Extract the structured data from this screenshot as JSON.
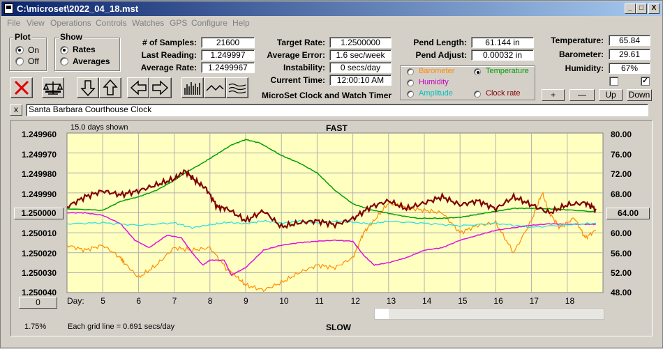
{
  "window": {
    "title": "C:\\microset\\2022_04_18.mst",
    "min": "_",
    "max": "□",
    "close": "X"
  },
  "menu": [
    "File",
    "View",
    "Operations",
    "Controls",
    "Watches",
    "GPS",
    "Configure",
    "Help"
  ],
  "plot_group": {
    "title": "Plot",
    "options": [
      "On",
      "Off"
    ],
    "selected": "On"
  },
  "show_group": {
    "title": "Show",
    "options": [
      "Rates",
      "Averages"
    ],
    "selected": "Rates"
  },
  "stats": {
    "samples_label": "# of Samples:",
    "samples": "21600",
    "last_label": "Last Reading:",
    "last": "1.249997",
    "avg_rate_label": "Average Rate:",
    "avg_rate": "1.2499967",
    "target_label": "Target Rate:",
    "target": "1.2500000",
    "avg_err_label": "Average Error:",
    "avg_err": "1.6 sec/week",
    "instab_label": "Instability:",
    "instab": "0 secs/day",
    "time_label": "Current Time:",
    "time": "12:00:10 AM",
    "pend_len_label": "Pend Length:",
    "pend_len": "61.144 in",
    "pend_adj_label": "Pend Adjust:",
    "pend_adj": "0.00032 in",
    "temp_label": "Temperature:",
    "temp": "65.84",
    "baro_label": "Barometer:",
    "baro": "29.61",
    "hum_label": "Humidity:",
    "hum": "67%"
  },
  "app_title": "MicroSet Clock and Watch Timer",
  "sensor_options": [
    {
      "label": "Barometer",
      "color": "#ff8c00",
      "selected": false
    },
    {
      "label": "Temperature",
      "color": "#00a000",
      "selected": true
    },
    {
      "label": "Humidity",
      "color": "#c000c0",
      "selected": false
    },
    {
      "label": "Clock rate",
      "color": "#800000",
      "selected": false
    },
    {
      "label": "Amplitude",
      "color": "#00c0c0",
      "selected": false
    }
  ],
  "small_buttons": {
    "plus": "+",
    "minus": "—",
    "up": "Up",
    "down": "Down"
  },
  "clock_name": "Santa Barbara Courthouse Clock",
  "close_x": "x",
  "chart_data": {
    "type": "line",
    "header_left": "15.0 days shown",
    "header_center": "FAST",
    "footer_center": "SLOW",
    "footer_left": "Each grid line = 0.691 secs/day",
    "percent": "1.75%",
    "left_axis_ticks": [
      "1.249960",
      "1.249970",
      "1.249980",
      "1.249990",
      "1.250000",
      "1.250010",
      "1.250020",
      "1.250030",
      "1.250040"
    ],
    "left_axis_button": "1.250000",
    "right_axis_ticks": [
      "80.00",
      "76.00",
      "72.00",
      "68.00",
      "64.00",
      "60.00",
      "56.00",
      "52.00",
      "48.00"
    ],
    "right_axis_button": "64.00",
    "x_label": "Day:",
    "x_ticks": [
      "5",
      "6",
      "7",
      "8",
      "9",
      "10",
      "11",
      "12",
      "13",
      "14",
      "15",
      "16",
      "17",
      "18"
    ],
    "x_range": [
      4,
      19
    ],
    "scroll_button": "0",
    "series": [
      {
        "name": "Temperature",
        "color": "#00a000",
        "width": 1.5,
        "x": [
          4.0,
          5.0,
          5.5,
          6.0,
          6.5,
          7.0,
          7.3,
          7.8,
          8.2,
          8.6,
          9.0,
          9.4,
          10.0,
          10.5,
          11.0,
          11.5,
          12.0,
          12.5,
          12.8,
          13.2,
          13.8,
          14.5,
          15.0,
          15.5,
          16.0,
          16.5,
          17.0,
          17.5,
          18.0,
          18.8
        ],
        "y": [
          64.8,
          64.5,
          66.3,
          67.2,
          68.5,
          70.5,
          72.0,
          74.0,
          75.8,
          77.6,
          78.7,
          78.0,
          75.5,
          74.0,
          72.0,
          68.5,
          65.8,
          64.6,
          64.2,
          63.6,
          62.9,
          62.9,
          63.1,
          63.7,
          64.3,
          64.9,
          64.9,
          64.8,
          64.6,
          64.2
        ]
      },
      {
        "name": "Clock rate",
        "color": "#800000",
        "width": 2.2,
        "x": [
          4.0,
          4.5,
          5.0,
          5.5,
          6.0,
          6.5,
          7.0,
          7.3,
          7.6,
          7.9,
          8.2,
          8.5,
          9.0,
          9.5,
          10.0,
          10.5,
          11.0,
          11.5,
          12.0,
          12.5,
          13.0,
          13.5,
          14.0,
          14.5,
          15.0,
          15.5,
          16.0,
          16.5,
          17.0,
          17.5,
          18.0,
          18.5,
          18.8
        ],
        "y": [
          1.249997,
          1.249992,
          1.249989,
          1.249991,
          1.249989,
          1.249986,
          1.249983,
          1.249979,
          1.249984,
          1.249988,
          1.249997,
          1.249998,
          1.250004,
          1.249999,
          1.250007,
          1.250005,
          1.250004,
          1.250006,
          1.250003,
          1.249997,
          1.249994,
          1.249998,
          1.249995,
          1.249992,
          1.249996,
          1.249994,
          1.249998,
          1.249992,
          1.249996,
          1.25,
          1.249996,
          1.249995,
          1.249998
        ]
      },
      {
        "name": "Barometer",
        "color": "#ff8c00",
        "width": 1.2,
        "x": [
          4.0,
          4.5,
          5.0,
          5.5,
          5.6,
          6.0,
          6.5,
          7.0,
          7.5,
          8.0,
          8.5,
          8.7,
          9.0,
          9.5,
          10.0,
          10.5,
          11.0,
          11.5,
          12.0,
          12.3,
          12.6,
          13.0,
          13.5,
          14.0,
          14.5,
          15.0,
          15.5,
          16.0,
          16.5,
          17.0,
          17.3,
          17.5,
          17.8,
          18.2,
          18.5,
          18.8
        ],
        "y": [
          57.5,
          56.5,
          57.5,
          55.0,
          54.0,
          51.0,
          53.5,
          57.0,
          56.5,
          57.0,
          52.5,
          51.5,
          49.5,
          48.5,
          50.0,
          52.0,
          53.5,
          53.0,
          55.0,
          60.0,
          62.5,
          66.0,
          65.0,
          64.5,
          64.0,
          60.0,
          61.5,
          62.0,
          56.0,
          62.5,
          68.0,
          64.0,
          61.0,
          63.0,
          59.0,
          60.5
        ]
      },
      {
        "name": "Humidity",
        "color": "#e010e0",
        "width": 1.5,
        "x": [
          4.0,
          4.5,
          5.0,
          5.5,
          5.9,
          6.3,
          6.8,
          7.2,
          7.5,
          7.8,
          8.0,
          8.4,
          8.6,
          9.0,
          9.5,
          10.0,
          10.5,
          11.0,
          11.5,
          12.0,
          12.3,
          12.6,
          13.0,
          13.5,
          14.0,
          14.5,
          15.0,
          15.5,
          16.0,
          16.5,
          17.0,
          17.5,
          18.0,
          18.5,
          18.8
        ],
        "y": [
          64.0,
          64.0,
          63.5,
          61.8,
          58.5,
          57.0,
          59.5,
          59.0,
          56.0,
          53.5,
          54.5,
          54.5,
          51.5,
          53.0,
          56.5,
          57.5,
          58.0,
          58.3,
          58.5,
          58.3,
          55.5,
          53.5,
          54.0,
          55.0,
          56.5,
          57.0,
          58.5,
          59.5,
          60.5,
          61.0,
          61.5,
          61.8,
          61.7,
          61.7,
          61.7
        ]
      },
      {
        "name": "Amplitude",
        "color": "#20e0e0",
        "width": 1.2,
        "x": [
          4.0,
          5.0,
          6.0,
          7.0,
          7.5,
          8.0,
          8.5,
          9.0,
          9.5,
          10.0,
          10.5,
          11.0,
          11.5,
          12.0,
          12.5,
          13.0,
          14.0,
          15.0,
          16.0,
          17.0,
          18.0,
          18.8
        ],
        "y": [
          61.8,
          62.0,
          61.5,
          62.0,
          61.0,
          61.6,
          62.1,
          61.8,
          62.4,
          61.9,
          62.4,
          62.0,
          62.3,
          62.1,
          61.8,
          62.3,
          61.9,
          61.4,
          61.9,
          61.1,
          61.6,
          61.9
        ]
      }
    ]
  }
}
